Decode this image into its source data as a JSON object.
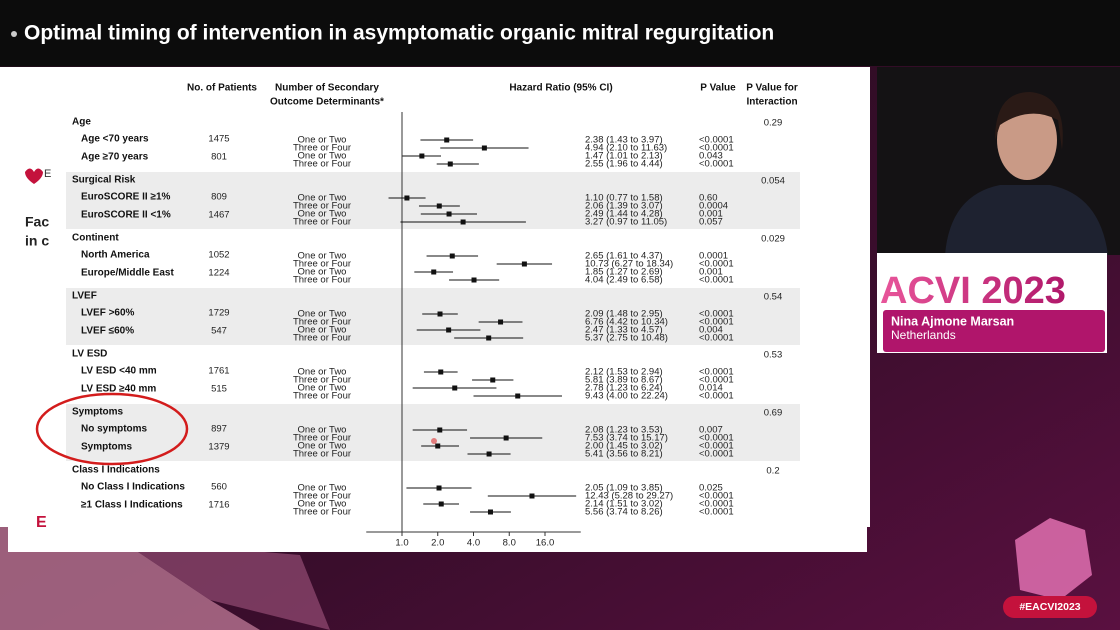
{
  "header": {
    "title": "Optimal timing of intervention in asymptomatic organic mitral regurgitation"
  },
  "slide": {
    "fragments": [
      "Fac",
      "in c",
      "E",
      "E"
    ]
  },
  "logo": {
    "text": "ACVI 2023"
  },
  "speaker": {
    "name": "Nina Ajmone Marsan",
    "country": "Netherlands"
  },
  "hashtag": "#EACVI2023",
  "chart_data": {
    "type": "forest",
    "columns": {
      "patients": "No. of Patients",
      "determinants": [
        "Number of Secondary",
        "Outcome Determinants*"
      ],
      "hr": "Hazard Ratio (95% CI)",
      "p": "P Value",
      "interaction": [
        "P Value for",
        "Interaction"
      ]
    },
    "x_log": true,
    "xlim": [
      0.5,
      32
    ],
    "xticks": [
      {
        "value": 1,
        "label": "1.0"
      },
      {
        "value": 2,
        "label": "2.0"
      },
      {
        "value": 4,
        "label": "4.0"
      },
      {
        "value": 8,
        "label": "8.0"
      },
      {
        "value": 16,
        "label": "16.0"
      }
    ],
    "color": "#111111",
    "band_color": "#ececec",
    "groups": [
      {
        "name": "Age",
        "interaction_p": 0.29,
        "rows": [
          {
            "label": "Age <70 years",
            "patients": 1475,
            "estimates": [
              {
                "determinants": "One or Two",
                "hr": 2.38,
                "ci": [
                  1.43,
                  3.97
                ],
                "hr_label": "2.38 (1.43 to 3.97)",
                "p": "<0.0001"
              },
              {
                "determinants": "Three or Four",
                "hr": 4.94,
                "ci": [
                  2.1,
                  11.63
                ],
                "hr_label": "4.94 (2.10 to 11.63)",
                "p": "<0.0001"
              }
            ]
          },
          {
            "label": "Age ≥70 years",
            "patients": 801,
            "estimates": [
              {
                "determinants": "One or Two",
                "hr": 1.47,
                "ci": [
                  1.01,
                  2.13
                ],
                "hr_label": "1.47 (1.01 to 2.13)",
                "p": "0.043"
              },
              {
                "determinants": "Three or Four",
                "hr": 2.55,
                "ci": [
                  1.96,
                  4.44
                ],
                "hr_label": "2.55 (1.96 to 4.44)",
                "p": "<0.0001"
              }
            ]
          }
        ]
      },
      {
        "name": "Surgical Risk",
        "interaction_p": 0.054,
        "rows": [
          {
            "label": "EuroSCORE II ≥1%",
            "patients": 809,
            "estimates": [
              {
                "determinants": "One or Two",
                "hr": 1.1,
                "ci": [
                  0.77,
                  1.58
                ],
                "hr_label": "1.10 (0.77 to 1.58)",
                "p": "0.60"
              },
              {
                "determinants": "Three or Four",
                "hr": 2.06,
                "ci": [
                  1.39,
                  3.07
                ],
                "hr_label": "2.06 (1.39 to 3.07)",
                "p": "0.0004"
              }
            ]
          },
          {
            "label": "EuroSCORE II <1%",
            "patients": 1467,
            "estimates": [
              {
                "determinants": "One or Two",
                "hr": 2.49,
                "ci": [
                  1.44,
                  4.28
                ],
                "hr_label": "2.49 (1.44 to 4.28)",
                "p": "0.001"
              },
              {
                "determinants": "Three or Four",
                "hr": 3.27,
                "ci": [
                  0.97,
                  11.05
                ],
                "hr_label": "3.27 (0.97 to 11.05)",
                "p": "0.057"
              }
            ]
          }
        ]
      },
      {
        "name": "Continent",
        "interaction_p": 0.029,
        "rows": [
          {
            "label": "North America",
            "patients": 1052,
            "estimates": [
              {
                "determinants": "One or Two",
                "hr": 2.65,
                "ci": [
                  1.61,
                  4.37
                ],
                "hr_label": "2.65 (1.61 to 4.37)",
                "p": "0.0001"
              },
              {
                "determinants": "Three or Four",
                "hr": 10.73,
                "ci": [
                  6.27,
                  18.34
                ],
                "hr_label": "10.73 (6.27 to 18.34)",
                "p": "<0.0001"
              }
            ]
          },
          {
            "label": "Europe/Middle East",
            "patients": 1224,
            "estimates": [
              {
                "determinants": "One or Two",
                "hr": 1.85,
                "ci": [
                  1.27,
                  2.69
                ],
                "hr_label": "1.85 (1.27 to 2.69)",
                "p": "0.001"
              },
              {
                "determinants": "Three or Four",
                "hr": 4.04,
                "ci": [
                  2.49,
                  6.58
                ],
                "hr_label": "4.04 (2.49 to 6.58)",
                "p": "<0.0001"
              }
            ]
          }
        ]
      },
      {
        "name": "LVEF",
        "interaction_p": 0.54,
        "rows": [
          {
            "label": "LVEF >60%",
            "patients": 1729,
            "estimates": [
              {
                "determinants": "One or Two",
                "hr": 2.09,
                "ci": [
                  1.48,
                  2.95
                ],
                "hr_label": "2.09 (1.48 to 2.95)",
                "p": "<0.0001"
              },
              {
                "determinants": "Three or Four",
                "hr": 6.76,
                "ci": [
                  4.42,
                  10.34
                ],
                "hr_label": "6.76 (4.42 to 10.34)",
                "p": "<0.0001"
              }
            ]
          },
          {
            "label": "LVEF ≤60%",
            "patients": 547,
            "estimates": [
              {
                "determinants": "One or Two",
                "hr": 2.47,
                "ci": [
                  1.33,
                  4.57
                ],
                "hr_label": "2.47 (1.33 to 4.57)",
                "p": "0.004"
              },
              {
                "determinants": "Three or Four",
                "hr": 5.37,
                "ci": [
                  2.75,
                  10.48
                ],
                "hr_label": "5.37 (2.75 to 10.48)",
                "p": "<0.0001"
              }
            ]
          }
        ]
      },
      {
        "name": "LV ESD",
        "interaction_p": 0.53,
        "rows": [
          {
            "label": "LV ESD <40 mm",
            "patients": 1761,
            "estimates": [
              {
                "determinants": "One or Two",
                "hr": 2.12,
                "ci": [
                  1.53,
                  2.94
                ],
                "hr_label": "2.12 (1.53 to 2.94)",
                "p": "<0.0001"
              },
              {
                "determinants": "Three or Four",
                "hr": 5.81,
                "ci": [
                  3.89,
                  8.67
                ],
                "hr_label": "5.81 (3.89 to 8.67)",
                "p": "<0.0001"
              }
            ]
          },
          {
            "label": "LV ESD ≥40 mm",
            "patients": 515,
            "estimates": [
              {
                "determinants": "One or Two",
                "hr": 2.78,
                "ci": [
                  1.23,
                  6.24
                ],
                "hr_label": "2.78 (1.23 to 6.24)",
                "p": "0.014"
              },
              {
                "determinants": "Three or Four",
                "hr": 9.43,
                "ci": [
                  4.0,
                  22.24
                ],
                "hr_label": "9.43 (4.00 to 22.24)",
                "p": "<0.0001"
              }
            ]
          }
        ]
      },
      {
        "name": "Symptoms",
        "interaction_p": 0.69,
        "rows": [
          {
            "label": "No symptoms",
            "patients": 897,
            "estimates": [
              {
                "determinants": "One or Two",
                "hr": 2.08,
                "ci": [
                  1.23,
                  3.53
                ],
                "hr_label": "2.08 (1.23 to 3.53)",
                "p": "0.007"
              },
              {
                "determinants": "Three or Four",
                "hr": 7.53,
                "ci": [
                  3.74,
                  15.17
                ],
                "hr_label": "7.53 (3.74 to 15.17)",
                "p": "<0.0001"
              }
            ]
          },
          {
            "label": "Symptoms",
            "patients": 1379,
            "estimates": [
              {
                "determinants": "One or Two",
                "hr": 2.0,
                "ci": [
                  1.45,
                  3.02
                ],
                "hr_label": "2.00 (1.45 to 3.02)",
                "p": "<0.0001"
              },
              {
                "determinants": "Three or Four",
                "hr": 5.41,
                "ci": [
                  3.56,
                  8.21
                ],
                "hr_label": "5.41 (3.56 to 8.21)",
                "p": "<0.0001"
              }
            ]
          }
        ]
      },
      {
        "name": "Class I Indications",
        "interaction_p": 0.2,
        "rows": [
          {
            "label": "No Class I Indications",
            "patients": 560,
            "estimates": [
              {
                "determinants": "One or Two",
                "hr": 2.05,
                "ci": [
                  1.09,
                  3.85
                ],
                "hr_label": "2.05 (1.09 to 3.85)",
                "p": "0.025"
              },
              {
                "determinants": "Three or Four",
                "hr": 12.43,
                "ci": [
                  5.28,
                  29.27
                ],
                "hr_label": "12.43 (5.28 to 29.27)",
                "p": "<0.0001"
              }
            ]
          },
          {
            "label": "≥1 Class I Indications",
            "patients": 1716,
            "estimates": [
              {
                "determinants": "One or Two",
                "hr": 2.14,
                "ci": [
                  1.51,
                  3.02
                ],
                "hr_label": "2.14 (1.51 to 3.02)",
                "p": "<0.0001"
              },
              {
                "determinants": "Three or Four",
                "hr": 5.56,
                "ci": [
                  3.74,
                  8.26
                ],
                "hr_label": "5.56 (3.74 to 8.26)",
                "p": "<0.0001"
              }
            ]
          }
        ]
      }
    ]
  }
}
